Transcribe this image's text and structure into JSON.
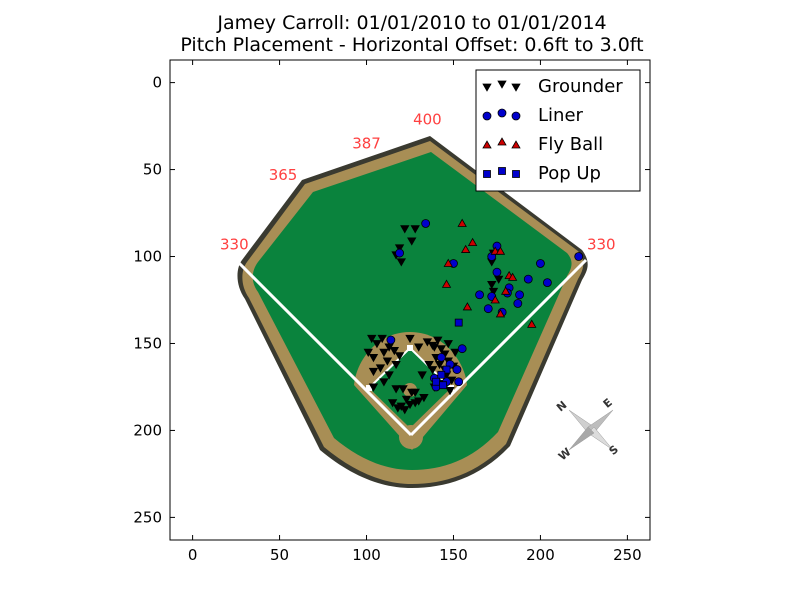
{
  "chart_data": {
    "type": "scatter",
    "title": "Jamey Carroll: 01/01/2010 to 01/01/2014",
    "subtitle": "Pitch Placement - Horizontal Offset: 0.6ft to 3.0ft",
    "xlim": [
      -13,
      263
    ],
    "ylim": [
      263,
      -13
    ],
    "x_ticks": [
      0,
      50,
      100,
      150,
      200,
      250
    ],
    "y_ticks": [
      0,
      50,
      100,
      150,
      200,
      250
    ],
    "grid": false,
    "legend_position": "top-right",
    "field": {
      "distance_labels": [
        {
          "text": "330",
          "x": 24,
          "y": 96
        },
        {
          "text": "365",
          "x": 52,
          "y": 56
        },
        {
          "text": "387",
          "x": 100,
          "y": 38
        },
        {
          "text": "400",
          "x": 135,
          "y": 24
        },
        {
          "text": "330",
          "x": 235,
          "y": 96
        }
      ],
      "compass": [
        "N",
        "E",
        "S",
        "W"
      ],
      "colors": {
        "grass": "#0a833d",
        "dirt": "#a88e55",
        "outline": "#3a3a30",
        "foul_line": "#ffffff",
        "distance_label": "#ff4040"
      }
    },
    "series": [
      {
        "name": "Grounder",
        "marker": "triangle-down",
        "color": "#000000",
        "points": [
          [
            122,
            84
          ],
          [
            128,
            84
          ],
          [
            126,
            91
          ],
          [
            119,
            95
          ],
          [
            117,
            99
          ],
          [
            120,
            103
          ],
          [
            173,
            98
          ],
          [
            172,
            103
          ],
          [
            176,
            113
          ],
          [
            172,
            116
          ],
          [
            173,
            120
          ],
          [
            103,
            147
          ],
          [
            106,
            150
          ],
          [
            109,
            147
          ],
          [
            101,
            155
          ],
          [
            104,
            158
          ],
          [
            110,
            155
          ],
          [
            113,
            152
          ],
          [
            116,
            154
          ],
          [
            119,
            157
          ],
          [
            112,
            160
          ],
          [
            117,
            162
          ],
          [
            108,
            164
          ],
          [
            104,
            166
          ],
          [
            113,
            168
          ],
          [
            110,
            172
          ],
          [
            104,
            175
          ],
          [
            117,
            176
          ],
          [
            121,
            176
          ],
          [
            126,
            178
          ],
          [
            128,
            178
          ],
          [
            123,
            182
          ],
          [
            125,
            185
          ],
          [
            120,
            186
          ],
          [
            128,
            184
          ],
          [
            115,
            184
          ],
          [
            118,
            187
          ],
          [
            122,
            188
          ],
          [
            133,
            181
          ],
          [
            130,
            183
          ],
          [
            125,
            147
          ],
          [
            130,
            152
          ],
          [
            135,
            149
          ],
          [
            138,
            151
          ],
          [
            141,
            148
          ],
          [
            143,
            153
          ],
          [
            145,
            156
          ],
          [
            140,
            158
          ],
          [
            147,
            160
          ],
          [
            142,
            162
          ],
          [
            145,
            165
          ],
          [
            150,
            163
          ],
          [
            146,
            168
          ],
          [
            149,
            171
          ],
          [
            139,
            175
          ],
          [
            143,
            173
          ],
          [
            138,
            165
          ],
          [
            136,
            162
          ],
          [
            132,
            168
          ],
          [
            139,
            152
          ],
          [
            147,
            150
          ],
          [
            151,
            155
          ],
          [
            148,
            177
          ]
        ]
      },
      {
        "name": "Liner",
        "marker": "circle",
        "color": "#0000cc",
        "points": [
          [
            134,
            81
          ],
          [
            119,
            98
          ],
          [
            150,
            104
          ],
          [
            175,
            94
          ],
          [
            172,
            100
          ],
          [
            175,
            109
          ],
          [
            200,
            104
          ],
          [
            222,
            100
          ],
          [
            193,
            113
          ],
          [
            204,
            115
          ],
          [
            182,
            118
          ],
          [
            181,
            121
          ],
          [
            188,
            122
          ],
          [
            165,
            122
          ],
          [
            172,
            123
          ],
          [
            170,
            130
          ],
          [
            178,
            132
          ],
          [
            187,
            127
          ],
          [
            114,
            148
          ],
          [
            155,
            153
          ],
          [
            143,
            158
          ],
          [
            139,
            170
          ],
          [
            140,
            175
          ],
          [
            146,
            172
          ],
          [
            152,
            165
          ],
          [
            148,
            162
          ],
          [
            153,
            172
          ]
        ]
      },
      {
        "name": "Fly Ball",
        "marker": "triangle-up",
        "color": "#cc0000",
        "points": [
          [
            155,
            81
          ],
          [
            161,
            92
          ],
          [
            157,
            96
          ],
          [
            174,
            97
          ],
          [
            177,
            97
          ],
          [
            147,
            104
          ],
          [
            182,
            111
          ],
          [
            184,
            112
          ],
          [
            146,
            116
          ],
          [
            180,
            120
          ],
          [
            174,
            125
          ],
          [
            158,
            129
          ],
          [
            177,
            133
          ],
          [
            195,
            139
          ]
        ]
      },
      {
        "name": "Pop Up",
        "marker": "square",
        "color": "#0000cc",
        "points": [
          [
            153,
            138
          ],
          [
            146,
            165
          ],
          [
            143,
            168
          ],
          [
            140,
            172
          ],
          [
            144,
            174
          ]
        ]
      }
    ]
  }
}
